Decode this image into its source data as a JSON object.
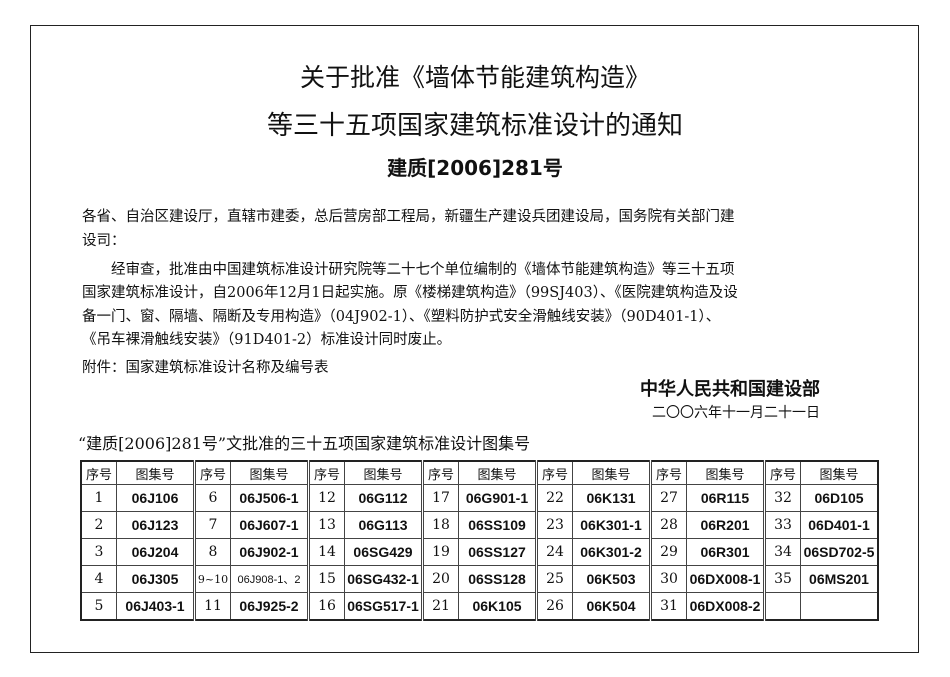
{
  "title_line1": "关于批准《墙体节能建筑构造》",
  "title_line2": "等三十五项国家建筑标准设计的通知",
  "doc_number": "建质[2006]281号",
  "paragraphs": [
    "各省、自治区建设厅，直辖市建委，总后营房部工程局，新疆生产建设兵团建设局，国务院有关部门建",
    "设司：",
    "　　经审查，批准由中国建筑标准设计研究院等二十七个单位编制的《墙体节能建筑构造》等三十五项",
    "国家建筑标准设计，自2006年12月1日起实施。原《楼梯建筑构造》（99SJ403）、《医院建筑构造及设",
    "备一门、窗、隔墙、隔断及专用构造》（04J902-1）、《塑料防护式安全滑触线安装》（90D401-1）、",
    "《吊车裸滑触线安装》（91D401-2）标准设计同时废止。",
    "附件：国家建筑标准设计名称及编号表"
  ],
  "issuer": "中华人民共和国建设部",
  "date": "二〇〇六年十一月二十一日",
  "table_caption": "“建质[2006]281号”文批准的三十五项国家建筑标准设计图集号",
  "table": {
    "header_no": "序号",
    "header_code": "图集号",
    "rows": [
      [
        [
          "1",
          "06J106"
        ],
        [
          "6",
          "06J506-1"
        ],
        [
          "12",
          "06G112"
        ],
        [
          "17",
          "06G901-1"
        ],
        [
          "22",
          "06K131"
        ],
        [
          "27",
          "06R115"
        ],
        [
          "32",
          "06D105"
        ]
      ],
      [
        [
          "2",
          "06J123"
        ],
        [
          "7",
          "06J607-1"
        ],
        [
          "13",
          "06G113"
        ],
        [
          "18",
          "06SS109"
        ],
        [
          "23",
          "06K301-1"
        ],
        [
          "28",
          "06R201"
        ],
        [
          "33",
          "06D401-1"
        ]
      ],
      [
        [
          "3",
          "06J204"
        ],
        [
          "8",
          "06J902-1"
        ],
        [
          "14",
          "06SG429"
        ],
        [
          "19",
          "06SS127"
        ],
        [
          "24",
          "06K301-2"
        ],
        [
          "29",
          "06R301"
        ],
        [
          "34",
          "06SD702-5"
        ]
      ],
      [
        [
          "4",
          "06J305"
        ],
        [
          "9~10",
          "06J908-1、2"
        ],
        [
          "15",
          "06SG432-1"
        ],
        [
          "20",
          "06SS128"
        ],
        [
          "25",
          "06K503"
        ],
        [
          "30",
          "06DX008-1"
        ],
        [
          "35",
          "06MS201"
        ]
      ],
      [
        [
          "5",
          "06J403-1"
        ],
        [
          "11",
          "06J925-2"
        ],
        [
          "16",
          "06SG517-1"
        ],
        [
          "21",
          "06K105"
        ],
        [
          "26",
          "06K504"
        ],
        [
          "31",
          "06DX008-2"
        ],
        [
          "",
          ""
        ]
      ]
    ]
  }
}
